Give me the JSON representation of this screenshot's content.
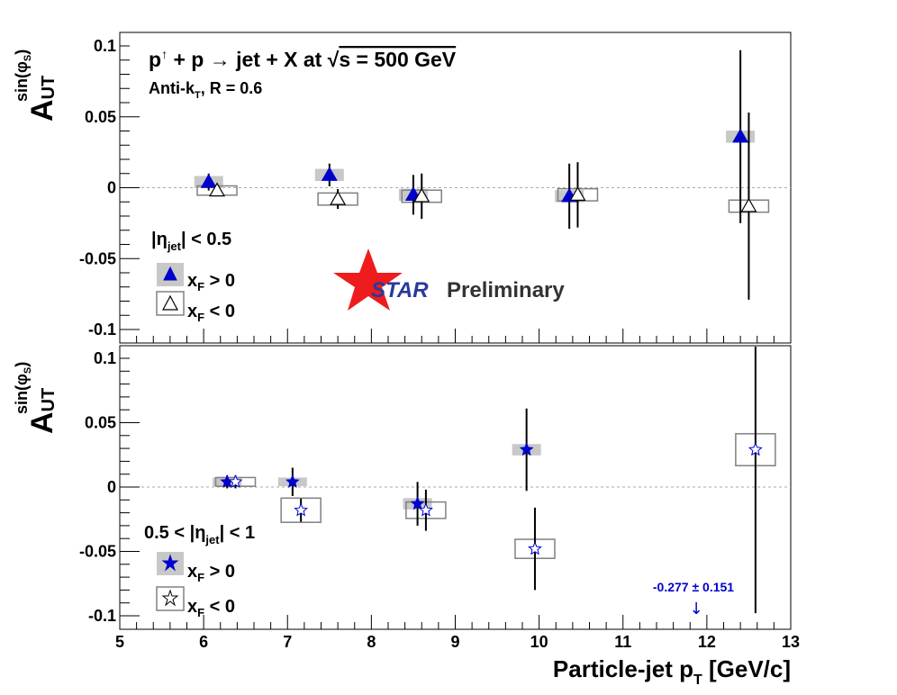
{
  "chart_data": [
    {
      "type": "scatter",
      "panel": "top",
      "title": "p↑ + p → jet + X at √s = 500 GeV",
      "subtitle": "Anti-kT, R = 0.6",
      "ylabel": "A_UT^sin(φS)",
      "ylim": [
        -0.11,
        0.11
      ],
      "yticks": [
        "-0.1",
        "-0.05",
        "0",
        "0.05",
        "0.1"
      ],
      "region_label": "|ηjet| < 0.5",
      "legend_placement": "left",
      "series": [
        {
          "name": "xF > 0",
          "marker": "filled-triangle",
          "color": "#0000cc",
          "points": [
            {
              "x": 6.06,
              "y": 0.004,
              "err": 0.006,
              "sys": 0.003
            },
            {
              "x": 7.5,
              "y": 0.009,
              "err": 0.008,
              "sys": 0.003
            },
            {
              "x": 8.5,
              "y": -0.005,
              "err": 0.014,
              "sys": 0.003
            },
            {
              "x": 10.36,
              "y": -0.006,
              "err": 0.023,
              "sys": 0.003
            },
            {
              "x": 12.4,
              "y": 0.036,
              "err": 0.061,
              "sys": 0.003
            }
          ]
        },
        {
          "name": "xF < 0",
          "marker": "open-triangle",
          "color": "#000000",
          "points": [
            {
              "x": 6.16,
              "y": -0.002,
              "err": 0.004,
              "sys": 0.002
            },
            {
              "x": 7.6,
              "y": -0.008,
              "err": 0.007,
              "sys": 0.003
            },
            {
              "x": 8.6,
              "y": -0.006,
              "err": 0.016,
              "sys": 0.003
            },
            {
              "x": 10.46,
              "y": -0.005,
              "err": 0.023,
              "sys": 0.003
            },
            {
              "x": 12.5,
              "y": -0.013,
              "err": 0.066,
              "sys": 0.003
            }
          ]
        }
      ]
    },
    {
      "type": "scatter",
      "panel": "bottom",
      "xlabel": "Particle-jet pT [GeV/c]",
      "ylabel": "A_UT^sin(φS)",
      "xlim": [
        5,
        13
      ],
      "xticks": [
        "5",
        "6",
        "7",
        "8",
        "9",
        "10",
        "11",
        "12",
        "13"
      ],
      "ylim": [
        -0.11,
        0.11
      ],
      "yticks": [
        "-0.1",
        "-0.05",
        "0",
        "0.05",
        "0.1"
      ],
      "region_label": "0.5 < |ηjet| < 1",
      "legend_placement": "left",
      "annotation": "-0.277 ± 0.151",
      "series": [
        {
          "name": "xF > 0",
          "marker": "filled-star",
          "color": "#0000cc",
          "points": [
            {
              "x": 6.28,
              "y": 0.004,
              "err": 0.005,
              "sys": 0.002
            },
            {
              "x": 7.06,
              "y": 0.004,
              "err": 0.011,
              "sys": 0.002
            },
            {
              "x": 8.55,
              "y": -0.013,
              "err": 0.017,
              "sys": 0.003
            },
            {
              "x": 9.85,
              "y": 0.029,
              "err": 0.032,
              "sys": 0.003
            }
          ]
        },
        {
          "name": "xF < 0",
          "marker": "open-star",
          "color": "#000000",
          "points": [
            {
              "x": 6.38,
              "y": 0.004,
              "err": 0.005,
              "sys": 0.002
            },
            {
              "x": 7.16,
              "y": -0.018,
              "err": 0.009,
              "sys": 0.008
            },
            {
              "x": 8.65,
              "y": -0.018,
              "err": 0.016,
              "sys": 0.005
            },
            {
              "x": 9.95,
              "y": -0.048,
              "err": 0.032,
              "sys": 0.006
            },
            {
              "x": 12.58,
              "y": 0.029,
              "err": 0.127,
              "sys": 0.011
            }
          ]
        }
      ]
    }
  ],
  "texts": {
    "top_title_main": "p",
    "top_title_up": "↑",
    "top_title_rest": " + p → jet + X at ",
    "top_title_sqrt": "√",
    "top_title_s": "s = 500 GeV",
    "top_subtitle_main": "Anti-k",
    "top_subtitle_sub": "T",
    "top_subtitle_rest": ", R = 0.6",
    "ylabel_main": "A",
    "ylabel_sub": "UT",
    "ylabel_sup": "sin(φ",
    "ylabel_sup_sub": "S",
    "ylabel_sup_close": ")",
    "top_region_pre": "|η",
    "top_region_sub": "jet",
    "top_region_post": "| < 0.5",
    "bot_region_pre": "0.5 < |η",
    "bot_region_sub": "jet",
    "bot_region_post": "| < 1",
    "legend_x": "x",
    "legend_F": "F",
    "legend_gt": " > 0",
    "legend_lt": " < 0",
    "star_word": "STAR",
    "preliminary": "Preliminary",
    "annotation": "-0.277 ± 0.151",
    "annotation_arrow": "↓",
    "xlabel_main": "Particle-jet p",
    "xlabel_sub": "T",
    "xlabel_post": " [GeV/c]"
  },
  "colors": {
    "blue": "#0000cc",
    "star_red": "#ee1c1c",
    "star_blue": "#2a3a9a",
    "sys_filled": "#c8c8c8",
    "sys_open": "#808080",
    "zero_line": "#aaaaaa"
  }
}
